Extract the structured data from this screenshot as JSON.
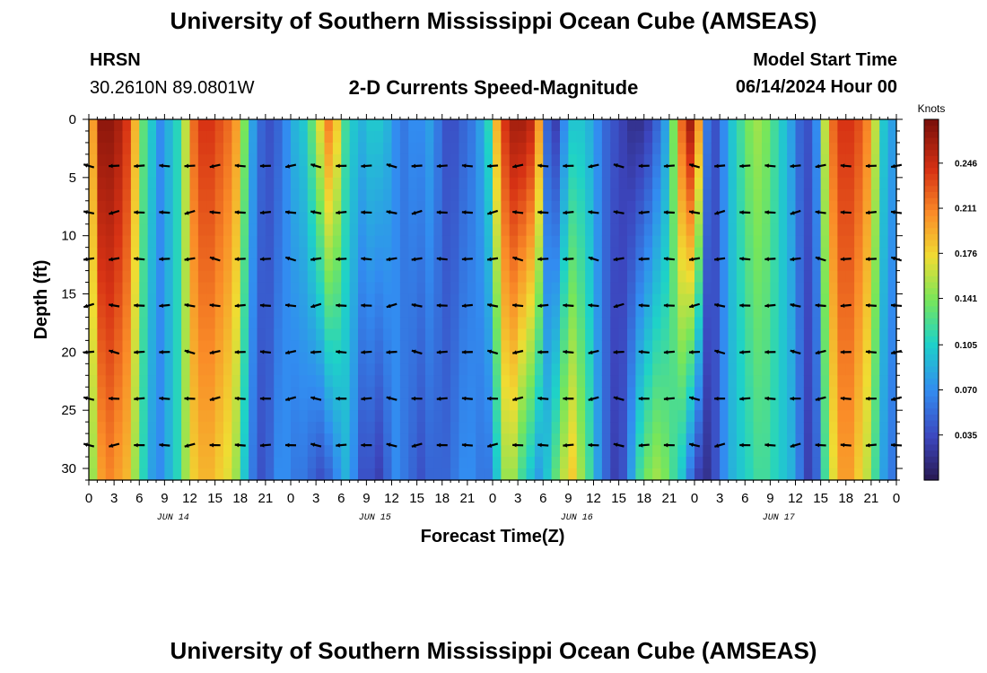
{
  "page": {
    "title_top": "University of Southern Mississippi Ocean Cube (AMSEAS)",
    "title_bottom": "University of Southern Mississippi Ocean Cube (AMSEAS)",
    "station": "HRSN",
    "location": "30.2610N  89.0801W",
    "subtitle": "2-D Currents Speed-Magnitude",
    "model_start_label": "Model Start Time",
    "model_start_value": "06/14/2024 Hour 00"
  },
  "chart_data": {
    "type": "heatmap",
    "title": "2-D Currents Speed-Magnitude",
    "xlabel": "Forecast Time(Z)",
    "ylabel": "Depth (ft)",
    "xlim": [
      0,
      96
    ],
    "ylim": [
      31,
      0
    ],
    "x_ticks": [
      "0",
      "3",
      "6",
      "9",
      "12",
      "15",
      "18",
      "21",
      "0",
      "3",
      "6",
      "9",
      "12",
      "15",
      "18",
      "21",
      "0",
      "3",
      "6",
      "9",
      "12",
      "15",
      "18",
      "21",
      "0",
      "3",
      "6",
      "9",
      "12",
      "15",
      "18",
      "21",
      "0"
    ],
    "y_ticks": [
      0,
      5,
      10,
      15,
      20,
      25,
      30
    ],
    "y_tick_labels": [
      "0",
      "5",
      "10",
      "15",
      "20",
      "25",
      "30"
    ],
    "day_labels": [
      "JUN 14",
      "JUN 15",
      "JUN 16",
      "JUN 17"
    ],
    "colorbar": {
      "unit": "Knots",
      "range": [
        0.0,
        0.28
      ],
      "ticks": [
        "0.246",
        "0.211",
        "0.176",
        "0.141",
        "0.105",
        "0.070",
        "0.035"
      ],
      "tick_values": [
        0.246,
        0.211,
        0.176,
        0.141,
        0.105,
        0.07,
        0.035
      ]
    },
    "arrow_depths_ft": [
      4,
      8,
      12,
      16,
      20,
      24,
      28
    ],
    "speed_profile_hours": [
      0,
      1,
      2,
      3,
      4,
      5,
      6,
      7,
      8,
      9,
      10,
      11,
      12,
      13,
      14,
      15,
      16,
      17,
      18,
      19,
      20,
      21,
      22,
      23,
      24,
      25,
      26,
      27,
      28,
      29,
      30,
      31,
      32,
      33,
      34,
      35,
      36,
      37,
      38,
      39,
      40,
      41,
      42,
      43,
      44,
      45,
      46,
      47,
      48,
      49,
      50,
      51,
      52,
      53,
      54,
      55,
      56,
      57,
      58,
      59,
      60,
      61,
      62,
      63,
      64,
      65,
      66,
      67,
      68,
      69,
      70,
      71,
      72,
      73,
      74,
      75,
      76,
      77,
      78,
      79,
      80,
      81,
      82,
      83,
      84,
      85,
      86,
      87,
      88,
      89,
      90,
      91,
      92,
      93,
      94,
      95,
      96
    ],
    "speed_surface_knots": [
      0.2,
      0.27,
      0.27,
      0.26,
      0.24,
      0.19,
      0.13,
      0.1,
      0.07,
      0.09,
      0.11,
      0.16,
      0.22,
      0.24,
      0.24,
      0.23,
      0.22,
      0.2,
      0.14,
      0.08,
      0.05,
      0.04,
      0.05,
      0.07,
      0.09,
      0.1,
      0.13,
      0.17,
      0.21,
      0.18,
      0.12,
      0.1,
      0.09,
      0.1,
      0.1,
      0.09,
      0.07,
      0.06,
      0.07,
      0.07,
      0.08,
      0.06,
      0.04,
      0.04,
      0.05,
      0.06,
      0.08,
      0.11,
      0.19,
      0.24,
      0.26,
      0.26,
      0.25,
      0.2,
      0.05,
      0.03,
      0.07,
      0.1,
      0.1,
      0.09,
      0.07,
      0.05,
      0.04,
      0.03,
      0.02,
      0.02,
      0.03,
      0.05,
      0.08,
      0.14,
      0.22,
      0.26,
      0.2,
      0.06,
      0.04,
      0.07,
      0.1,
      0.12,
      0.14,
      0.15,
      0.14,
      0.12,
      0.1,
      0.08,
      0.05,
      0.04,
      0.07,
      0.16,
      0.22,
      0.24,
      0.24,
      0.23,
      0.21,
      0.16,
      0.1,
      0.08,
      0.06
    ],
    "speed_bottom_knots": [
      0.15,
      0.2,
      0.21,
      0.2,
      0.19,
      0.15,
      0.11,
      0.08,
      0.07,
      0.09,
      0.11,
      0.15,
      0.18,
      0.19,
      0.19,
      0.18,
      0.17,
      0.15,
      0.1,
      0.06,
      0.04,
      0.05,
      0.07,
      0.07,
      0.06,
      0.06,
      0.05,
      0.04,
      0.05,
      0.07,
      0.09,
      0.07,
      0.04,
      0.04,
      0.03,
      0.05,
      0.07,
      0.06,
      0.05,
      0.04,
      0.05,
      0.05,
      0.05,
      0.06,
      0.07,
      0.07,
      0.06,
      0.06,
      0.1,
      0.15,
      0.15,
      0.12,
      0.1,
      0.08,
      0.1,
      0.13,
      0.16,
      0.18,
      0.15,
      0.12,
      0.08,
      0.05,
      0.03,
      0.04,
      0.08,
      0.12,
      0.14,
      0.15,
      0.14,
      0.12,
      0.1,
      0.06,
      0.03,
      0.02,
      0.04,
      0.07,
      0.09,
      0.1,
      0.11,
      0.12,
      0.12,
      0.11,
      0.1,
      0.09,
      0.06,
      0.03,
      0.05,
      0.12,
      0.17,
      0.2,
      0.2,
      0.18,
      0.16,
      0.12,
      0.08,
      0.06,
      0.05
    ]
  }
}
